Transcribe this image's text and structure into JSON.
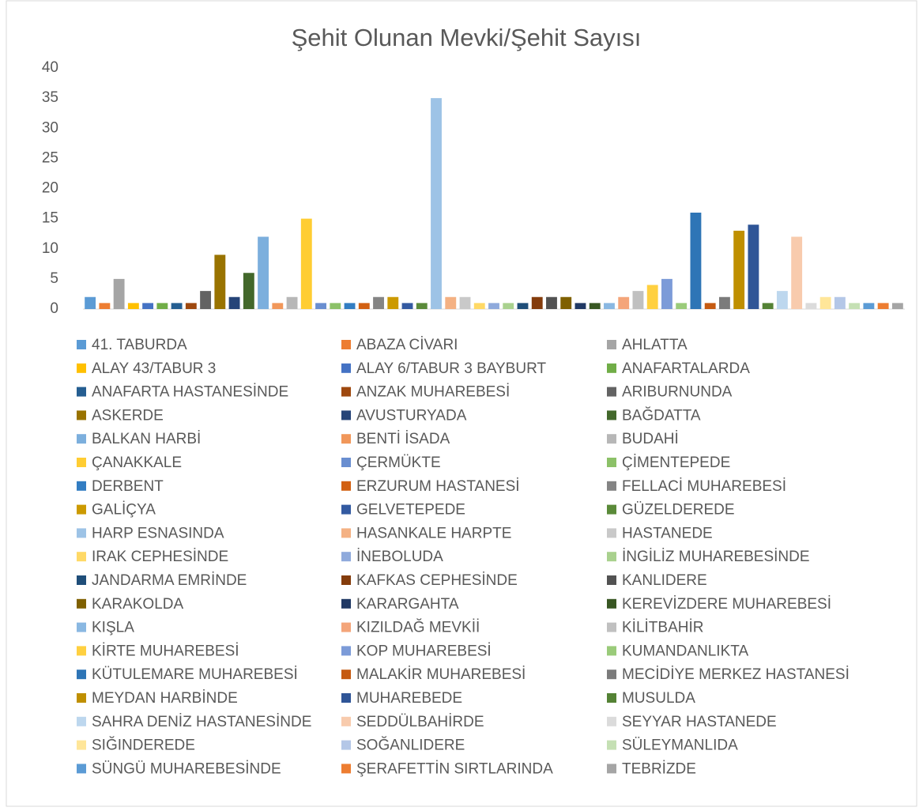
{
  "chart_data": {
    "type": "bar",
    "title": "Şehit Olunan Mevki/Şehit Sayısı",
    "categories": [
      "41. TABURDA",
      "ABAZA CİVARI",
      "AHLATTA",
      "ALAY 43/TABUR 3",
      "ALAY 6/TABUR 3 BAYBURT",
      "ANAFARTALARDA",
      "ANAFARTA HASTANESİNDE",
      "ANZAK MUHAREBESİ",
      "ARIBURNUNDA",
      "ASKERDE",
      "AVUSTURYADA",
      "BAĞDATTA",
      "BALKAN HARBİ",
      "BENTİ İSADA",
      "BUDAHİ",
      "ÇANAKKALE",
      "ÇERMÜKTE",
      "ÇİMENTEPEDE",
      "DERBENT",
      "ERZURUM HASTANESİ",
      "FELLACİ MUHAREBESİ",
      "GALİÇYA",
      "GELVETEPEDE",
      "GÜZELDEREDE",
      "HARP ESNASINDA",
      "HASANKALE HARPTE",
      "HASTANEDE",
      "IRAK CEPHESİNDE",
      "İNEBOLUDA",
      "İNGİLİZ MUHAREBESİNDE",
      "JANDARMA EMRİNDE",
      "KAFKAS CEPHESİNDE",
      "KANLIDERE",
      "KARAKOLDA",
      "KARARGAHTA",
      "KEREVİZDERE MUHAREBESİ",
      "KIŞLA",
      "KIZILDAĞ MEVKİİ",
      "KİLİTBAHİR",
      "KİRTE MUHAREBESİ",
      "KOP MUHAREBESİ",
      "KUMANDANLIKTA",
      "KÜTULEMARE MUHAREBESİ",
      "MALAKİR MUHAREBESİ",
      "MECİDİYE MERKEZ HASTANESİ",
      "MEYDAN HARBİNDE",
      "MUHAREBEDE",
      "MUSULDA",
      "SAHRA DENİZ HASTANESİNDE",
      "SEDDÜLBAHİRDE",
      "SEYYAR HASTANEDE",
      "SIĞINDEREDE",
      "SOĞANLIDERE",
      "SÜLEYMANLIDA",
      "SÜNGÜ MUHAREBESİNDE",
      "ŞERAFETTİN SIRTLARINDA",
      "TEBRİZDE"
    ],
    "values": [
      2,
      1,
      5,
      1,
      1,
      1,
      1,
      1,
      3,
      9,
      2,
      6,
      12,
      1,
      2,
      15,
      1,
      1,
      1,
      1,
      2,
      2,
      1,
      1,
      35,
      2,
      2,
      1,
      1,
      1,
      1,
      2,
      2,
      2,
      1,
      1,
      1,
      2,
      3,
      4,
      5,
      1,
      16,
      1,
      2,
      13,
      14,
      1,
      3,
      12,
      1,
      2,
      2,
      1,
      1,
      1,
      1
    ],
    "colors": [
      "#5B9BD5",
      "#ED7D31",
      "#A5A5A5",
      "#FFC000",
      "#4472C4",
      "#70AD47",
      "#255E91",
      "#9E480E",
      "#636363",
      "#997300",
      "#264478",
      "#43682B",
      "#7CAFDD",
      "#F1975A",
      "#B7B7B7",
      "#FFCD33",
      "#698ED0",
      "#8CC168",
      "#327DC2",
      "#D26012",
      "#848484",
      "#CC9A00",
      "#335AA1",
      "#5A8A39",
      "#9DC3E6",
      "#F4B183",
      "#C9C9C9",
      "#FFD966",
      "#8FAADC",
      "#A9D18E",
      "#1F4E79",
      "#843C0C",
      "#525252",
      "#7F6000",
      "#203864",
      "#385723",
      "#8AB8E2",
      "#F4A57A",
      "#C0C0C0",
      "#FFD040",
      "#7C9BD8",
      "#9ACB7A",
      "#2E75B6",
      "#C55A11",
      "#7B7B7B",
      "#BF8F00",
      "#2F5597",
      "#548235",
      "#BDD7EE",
      "#F8CBAD",
      "#DBDBDB",
      "#FFE699",
      "#B4C7E7",
      "#C5E0B4",
      "#5B9BD5",
      "#ED7D31",
      "#A5A5A5"
    ],
    "ylim": [
      0,
      40
    ],
    "yticks": [
      0,
      5,
      10,
      15,
      20,
      25,
      30,
      35,
      40
    ],
    "legend": "bottom"
  }
}
